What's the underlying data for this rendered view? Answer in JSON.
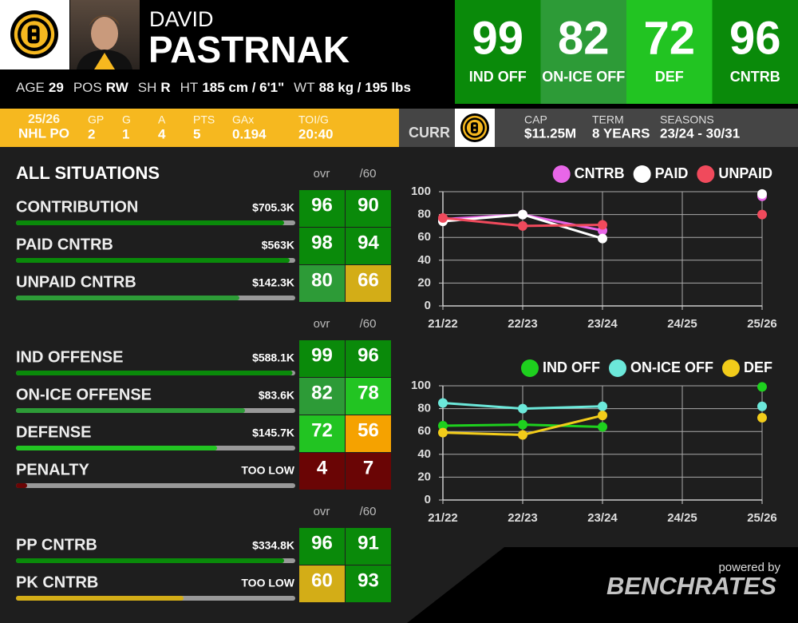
{
  "header": {
    "first_name": "DAVID",
    "last_name": "PASTRNAK",
    "bio": [
      {
        "label": "AGE",
        "value": "29"
      },
      {
        "label": "POS",
        "value": "RW"
      },
      {
        "label": "SH",
        "value": "R"
      },
      {
        "label": "HT",
        "value": "185 cm / 6'1\""
      },
      {
        "label": "WT",
        "value": "88 kg / 195 lbs"
      }
    ]
  },
  "ratings": [
    {
      "value": 99,
      "label": "IND OFF"
    },
    {
      "value": 82,
      "label": "ON-ICE OFF"
    },
    {
      "value": 72,
      "label": "DEF"
    },
    {
      "value": 96,
      "label": "CNTRB"
    }
  ],
  "season_stats": {
    "season": "25/26",
    "league": "NHL PO",
    "stats": [
      {
        "label": "GP",
        "value": "2"
      },
      {
        "label": "G",
        "value": "1"
      },
      {
        "label": "A",
        "value": "4"
      },
      {
        "label": "PTS",
        "value": "5"
      },
      {
        "label": "GAx",
        "value": "0.194"
      },
      {
        "label": "TOI/G",
        "value": "20:40"
      }
    ]
  },
  "contract": {
    "label": "CURR",
    "items": [
      {
        "label": "CAP",
        "value": "$11.25M"
      },
      {
        "label": "TERM",
        "value": "8 YEARS"
      },
      {
        "label": "SEASONS",
        "value": "23/24 - 30/31"
      }
    ]
  },
  "situations": {
    "title": "ALL SITUATIONS",
    "groups": [
      {
        "columns": [
          "ovr",
          "/60"
        ],
        "rows": [
          {
            "name": "CONTRIBUTION",
            "value": "$705.3K",
            "ovr": 96,
            "per60": 90
          },
          {
            "name": "PAID CNTRB",
            "value": "$563K",
            "ovr": 98,
            "per60": 94
          },
          {
            "name": "UNPAID CNTRB",
            "value": "$142.3K",
            "ovr": 80,
            "per60": 66
          }
        ]
      },
      {
        "columns": [
          "ovr",
          "/60"
        ],
        "rows": [
          {
            "name": "IND OFFENSE",
            "value": "$588.1K",
            "ovr": 99,
            "per60": 96
          },
          {
            "name": "ON-ICE OFFENSE",
            "value": "$83.6K",
            "ovr": 82,
            "per60": 78
          },
          {
            "name": "DEFENSE",
            "value": "$145.7K",
            "ovr": 72,
            "per60": 56
          },
          {
            "name": "PENALTY",
            "value": "TOO LOW",
            "ovr": 4,
            "per60": 7
          }
        ]
      },
      {
        "columns": [
          "ovr",
          "/60"
        ],
        "rows": [
          {
            "name": "PP CNTRB",
            "value": "$334.8K",
            "ovr": 96,
            "per60": 91
          },
          {
            "name": "PK CNTRB",
            "value": "TOO LOW",
            "ovr": 60,
            "per60": 93
          }
        ]
      }
    ]
  },
  "chart_data": [
    {
      "type": "line",
      "categories": [
        "21/22",
        "22/23",
        "23/24",
        "24/25",
        "25/26"
      ],
      "ylim": [
        0,
        100
      ],
      "yticks": [
        0,
        20,
        40,
        60,
        80,
        100
      ],
      "grid": true,
      "legend": "top-right",
      "series": [
        {
          "name": "CNTRB",
          "color": "#e866e8",
          "values": [
            76,
            80,
            66,
            null,
            96
          ]
        },
        {
          "name": "PAID",
          "color": "#ffffff",
          "values": [
            74,
            80,
            59,
            null,
            98
          ]
        },
        {
          "name": "UNPAID",
          "color": "#f04a5c",
          "values": [
            77,
            70,
            71,
            null,
            80
          ]
        }
      ]
    },
    {
      "type": "line",
      "categories": [
        "21/22",
        "22/23",
        "23/24",
        "24/25",
        "25/26"
      ],
      "ylim": [
        0,
        100
      ],
      "yticks": [
        0,
        20,
        40,
        60,
        80,
        100
      ],
      "grid": true,
      "legend": "top-right",
      "series": [
        {
          "name": "IND OFF",
          "color": "#1ed01e",
          "values": [
            65,
            66,
            64,
            null,
            99
          ]
        },
        {
          "name": "ON-ICE OFF",
          "color": "#6ce8da",
          "values": [
            85,
            80,
            82,
            null,
            82
          ]
        },
        {
          "name": "DEF",
          "color": "#f2cc1a",
          "values": [
            59,
            57,
            74,
            null,
            72
          ]
        }
      ]
    }
  ],
  "footer": {
    "powered_by": "powered by",
    "brand": "BENCHRATES"
  }
}
